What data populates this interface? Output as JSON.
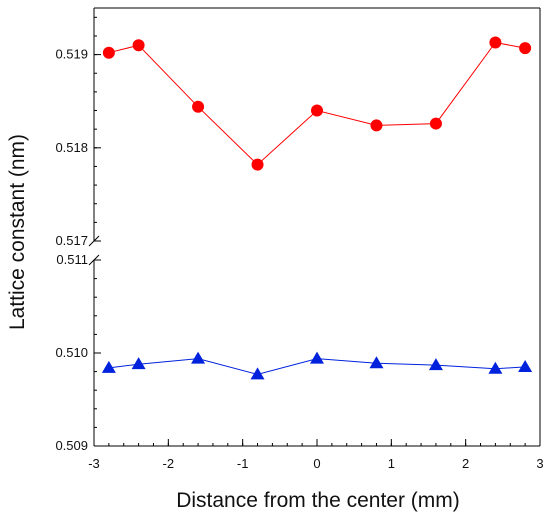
{
  "chart_data": {
    "type": "scatter",
    "xlabel": "Distance from the center (mm)",
    "ylabel": "Lattice constant (nm)",
    "xlim": [
      -3,
      3
    ],
    "x_ticks": [
      "-3",
      "-2",
      "-1",
      "0",
      "1",
      "2",
      "3"
    ],
    "broken_y_axis": true,
    "upper_panel": {
      "ylim": [
        0.517,
        0.5195
      ],
      "y_ticks": [
        "0.517",
        "0.518",
        "0.519"
      ]
    },
    "lower_panel": {
      "ylim": [
        0.509,
        0.511
      ],
      "y_ticks": [
        "0.509",
        "0.510",
        "0.511"
      ]
    },
    "series": [
      {
        "panel": "upper",
        "marker": "circle",
        "color": "#ff0000",
        "x": [
          -2.8,
          -2.4,
          -1.6,
          -0.8,
          0,
          0.8,
          1.6,
          2.4,
          2.8
        ],
        "y": [
          0.51902,
          0.5191,
          0.51844,
          0.51782,
          0.5184,
          0.51824,
          0.51826,
          0.51913,
          0.51907
        ]
      },
      {
        "panel": "lower",
        "marker": "triangle",
        "color": "#0022dd",
        "x": [
          -2.8,
          -2.4,
          -1.6,
          -0.8,
          0,
          0.8,
          1.6,
          2.4,
          2.8
        ],
        "y": [
          0.50984,
          0.50988,
          0.50994,
          0.50977,
          0.50994,
          0.50989,
          0.50987,
          0.50983,
          0.50985
        ]
      }
    ]
  }
}
